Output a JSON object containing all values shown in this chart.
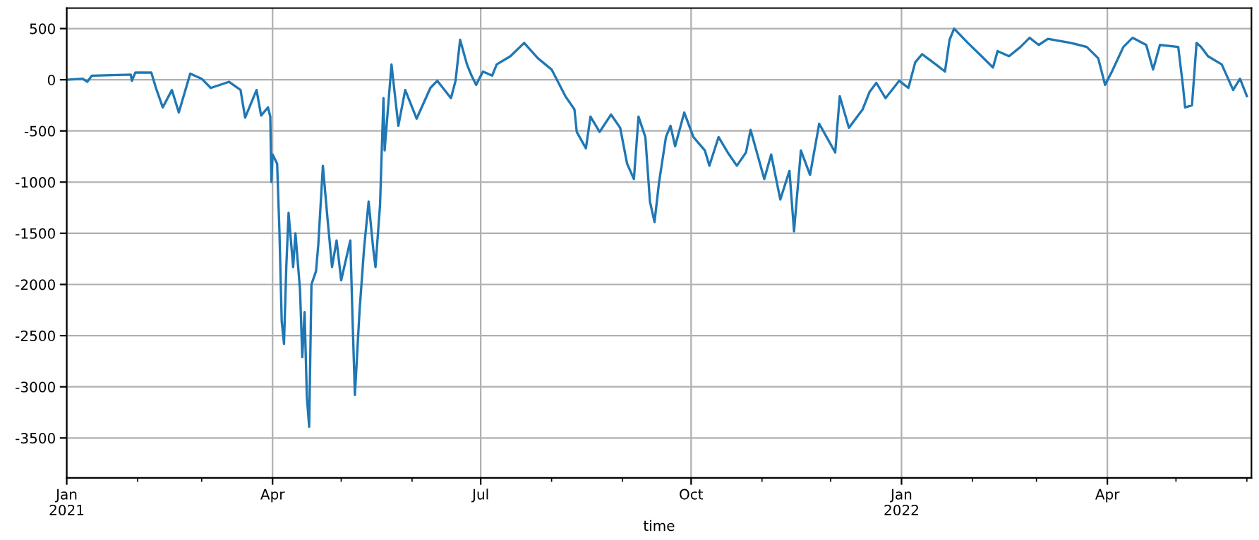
{
  "chart_data": {
    "type": "line",
    "xlabel": "time",
    "x": [
      "2021-01-01",
      "2021-01-08",
      "2021-01-10",
      "2021-01-12",
      "2021-01-29",
      "2021-01-29T12:00",
      "2021-01-31",
      "2021-02-07",
      "2021-02-09",
      "2021-02-12",
      "2021-02-16",
      "2021-02-19",
      "2021-02-24",
      "2021-03-01",
      "2021-03-05",
      "2021-03-13",
      "2021-03-18",
      "2021-03-20",
      "2021-03-25",
      "2021-03-27",
      "2021-03-30",
      "2021-03-31",
      "2021-03-31T12:00",
      "2021-04-01",
      "2021-04-03",
      "2021-04-04",
      "2021-04-05",
      "2021-04-06",
      "2021-04-07",
      "2021-04-08",
      "2021-04-10",
      "2021-04-11",
      "2021-04-13",
      "2021-04-14",
      "2021-04-15",
      "2021-04-16",
      "2021-04-17",
      "2021-04-18",
      "2021-04-20",
      "2021-04-21",
      "2021-04-23",
      "2021-04-25",
      "2021-04-27",
      "2021-04-29",
      "2021-05-01",
      "2021-05-05",
      "2021-05-06",
      "2021-05-07",
      "2021-05-09",
      "2021-05-11",
      "2021-05-13",
      "2021-05-15",
      "2021-05-16",
      "2021-05-18",
      "2021-05-19",
      "2021-05-19T12:00",
      "2021-05-20",
      "2021-05-23",
      "2021-05-26",
      "2021-05-29",
      "2021-06-03",
      "2021-06-09",
      "2021-06-12",
      "2021-06-18",
      "2021-06-20",
      "2021-06-22",
      "2021-06-25",
      "2021-06-27",
      "2021-06-29",
      "2021-07-02",
      "2021-07-06",
      "2021-07-08",
      "2021-07-14",
      "2021-07-20",
      "2021-07-26",
      "2021-08-01",
      "2021-08-07",
      "2021-08-11",
      "2021-08-12",
      "2021-08-16",
      "2021-08-18",
      "2021-08-22",
      "2021-08-27",
      "2021-08-31",
      "2021-09-03",
      "2021-09-06",
      "2021-09-08",
      "2021-09-11",
      "2021-09-13",
      "2021-09-15",
      "2021-09-17",
      "2021-09-20",
      "2021-09-22",
      "2021-09-24",
      "2021-09-28",
      "2021-10-02",
      "2021-10-07",
      "2021-10-09",
      "2021-10-13",
      "2021-10-17",
      "2021-10-21",
      "2021-10-25",
      "2021-10-27",
      "2021-11-02",
      "2021-11-05",
      "2021-11-09",
      "2021-11-13",
      "2021-11-15",
      "2021-11-18",
      "2021-11-22",
      "2021-11-26",
      "2021-11-28",
      "2021-12-03",
      "2021-12-05",
      "2021-12-09",
      "2021-12-15",
      "2021-12-18",
      "2021-12-21",
      "2021-12-25",
      "2021-12-31",
      "2022-01-04",
      "2022-01-07",
      "2022-01-10",
      "2022-01-16",
      "2022-01-20",
      "2022-01-22",
      "2022-01-24",
      "2022-01-30",
      "2022-02-05",
      "2022-02-10",
      "2022-02-12",
      "2022-02-17",
      "2022-02-22",
      "2022-02-26",
      "2022-03-02",
      "2022-03-06",
      "2022-03-16",
      "2022-03-23",
      "2022-03-28",
      "2022-03-31",
      "2022-04-03",
      "2022-04-08",
      "2022-04-12",
      "2022-04-18",
      "2022-04-21",
      "2022-04-24",
      "2022-05-02",
      "2022-05-04",
      "2022-05-05",
      "2022-05-08",
      "2022-05-10",
      "2022-05-12",
      "2022-05-15",
      "2022-05-21",
      "2022-05-26",
      "2022-05-29",
      "2022-06-01"
    ],
    "series": [
      {
        "color": "#1f77b4",
        "values": [
          0,
          10,
          -20,
          40,
          50,
          -10,
          70,
          70,
          -80,
          -270,
          -100,
          -320,
          60,
          10,
          -80,
          -20,
          -100,
          -370,
          -100,
          -350,
          -270,
          -360,
          -1000,
          -730,
          -820,
          -1480,
          -2360,
          -2580,
          -1830,
          -1300,
          -1830,
          -1500,
          -2050,
          -2710,
          -2270,
          -3100,
          -3390,
          -2000,
          -1870,
          -1610,
          -840,
          -1350,
          -1830,
          -1570,
          -1960,
          -1570,
          -2360,
          -3080,
          -2270,
          -1650,
          -1190,
          -1650,
          -1830,
          -1220,
          -510,
          -180,
          -690,
          150,
          -450,
          -100,
          -380,
          -80,
          -10,
          -180,
          -10,
          390,
          150,
          40,
          -50,
          80,
          40,
          150,
          230,
          360,
          210,
          100,
          -160,
          -290,
          -510,
          -670,
          -360,
          -510,
          -340,
          -470,
          -820,
          -970,
          -360,
          -560,
          -1190,
          -1390,
          -1000,
          -560,
          -450,
          -650,
          -320,
          -560,
          -690,
          -840,
          -560,
          -710,
          -840,
          -710,
          -490,
          -970,
          -730,
          -1170,
          -890,
          -1480,
          -690,
          -930,
          -430,
          -510,
          -710,
          -160,
          -470,
          -290,
          -120,
          -30,
          -180,
          -10,
          -80,
          170,
          250,
          150,
          80,
          390,
          500,
          360,
          230,
          120,
          280,
          230,
          320,
          410,
          340,
          400,
          360,
          320,
          210,
          -50,
          80,
          320,
          410,
          340,
          100,
          340,
          320,
          -50,
          -270,
          -250,
          360,
          320,
          230,
          150,
          -100,
          10,
          -160
        ]
      }
    ],
    "xlim": [
      "2021-01-01",
      "2022-06-03"
    ],
    "xticks": [
      {
        "value": "2021-01-01",
        "label": "Jan\n2021"
      },
      {
        "value": "2021-02-01",
        "label": null
      },
      {
        "value": "2021-03-01",
        "label": null
      },
      {
        "value": "2021-04-01",
        "label": "Apr"
      },
      {
        "value": "2021-05-01",
        "label": null
      },
      {
        "value": "2021-06-01",
        "label": null
      },
      {
        "value": "2021-07-01",
        "label": "Jul"
      },
      {
        "value": "2021-08-01",
        "label": null
      },
      {
        "value": "2021-09-01",
        "label": null
      },
      {
        "value": "2021-10-01",
        "label": "Oct"
      },
      {
        "value": "2021-11-01",
        "label": null
      },
      {
        "value": "2021-12-01",
        "label": null
      },
      {
        "value": "2022-01-01",
        "label": "Jan\n2022"
      },
      {
        "value": "2022-02-01",
        "label": null
      },
      {
        "value": "2022-03-01",
        "label": null
      },
      {
        "value": "2022-04-01",
        "label": "Apr"
      },
      {
        "value": "2022-05-01",
        "label": null
      },
      {
        "value": "2022-06-01",
        "label": null
      }
    ],
    "ylim": [
      -3890,
      700
    ],
    "yticks": [
      -3500,
      -3000,
      -2500,
      -2000,
      -1500,
      -1000,
      -500,
      0,
      500
    ],
    "grid": true
  }
}
